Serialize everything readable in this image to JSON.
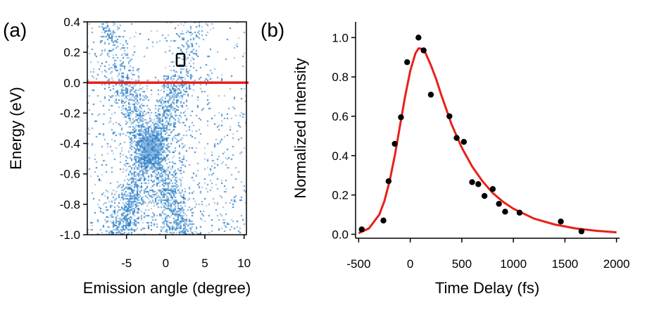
{
  "chart_data": [
    {
      "panel_label": "(a)",
      "type": "heatmap",
      "xlabel": "Emission angle (degree)",
      "ylabel": "Energy (eV)",
      "xlim": [
        -10,
        10.3
      ],
      "ylim": [
        -1.0,
        0.4
      ],
      "xticks": [
        -5,
        0,
        5,
        10
      ],
      "yticks": [
        0.4,
        0.2,
        0.0,
        -0.2,
        -0.4,
        -0.6,
        -0.8,
        -1.0
      ],
      "xtick_labels": [
        "-5",
        "0",
        "5",
        "10"
      ],
      "ytick_labels": [
        "0.4",
        "0.2",
        "0.0",
        "-0.2",
        "-0.4",
        "-0.6",
        "-0.8",
        "-1.0"
      ],
      "colormap": [
        "#ffffff",
        "#1f77c4"
      ],
      "dirac_point": {
        "angle": -2,
        "energy": -0.43
      },
      "reference_line": {
        "energy": 0.0,
        "color": "#e8201a"
      },
      "roi_box": {
        "angle_range": [
          1.4,
          2.4
        ],
        "energy_range": [
          0.11,
          0.19
        ],
        "color": "#000000"
      }
    },
    {
      "panel_label": "(b)",
      "type": "scatter",
      "xlabel": "Time Delay (fs)",
      "ylabel": "Normalized Intensity",
      "xlim": [
        -530,
        2030
      ],
      "ylim": [
        -0.02,
        1.08
      ],
      "xticks": [
        -500,
        0,
        500,
        1000,
        1500,
        2000
      ],
      "yticks": [
        0.0,
        0.2,
        0.4,
        0.6,
        0.8,
        1.0
      ],
      "xtick_labels": [
        "-500",
        "0",
        "500",
        "1000",
        "1500",
        "2000"
      ],
      "ytick_labels": [
        "0.0",
        "0.2",
        "0.4",
        "0.6",
        "0.8",
        "1.0"
      ],
      "series": [
        {
          "type": "scatter",
          "color": "#000000",
          "x": [
            -470,
            -260,
            -210,
            -150,
            -90,
            -30,
            80,
            130,
            200,
            380,
            450,
            520,
            600,
            660,
            720,
            800,
            860,
            920,
            1060,
            1460,
            1660
          ],
          "y": [
            0.025,
            0.07,
            0.27,
            0.46,
            0.595,
            0.875,
            1.0,
            0.935,
            0.71,
            0.6,
            0.49,
            0.47,
            0.265,
            0.255,
            0.195,
            0.23,
            0.155,
            0.115,
            0.11,
            0.065,
            0.015
          ]
        },
        {
          "type": "line",
          "color": "#e8201a",
          "x": [
            -500,
            -400,
            -300,
            -250,
            -200,
            -150,
            -100,
            -50,
            0,
            50,
            80,
            100,
            150,
            200,
            250,
            300,
            400,
            500,
            600,
            700,
            800,
            900,
            1000,
            1200,
            1400,
            1600,
            1800,
            2000
          ],
          "y": [
            0.006,
            0.03,
            0.1,
            0.17,
            0.27,
            0.4,
            0.55,
            0.7,
            0.83,
            0.92,
            0.945,
            0.945,
            0.92,
            0.86,
            0.79,
            0.71,
            0.56,
            0.44,
            0.345,
            0.27,
            0.21,
            0.165,
            0.13,
            0.08,
            0.05,
            0.03,
            0.018,
            0.01
          ]
        }
      ]
    }
  ]
}
